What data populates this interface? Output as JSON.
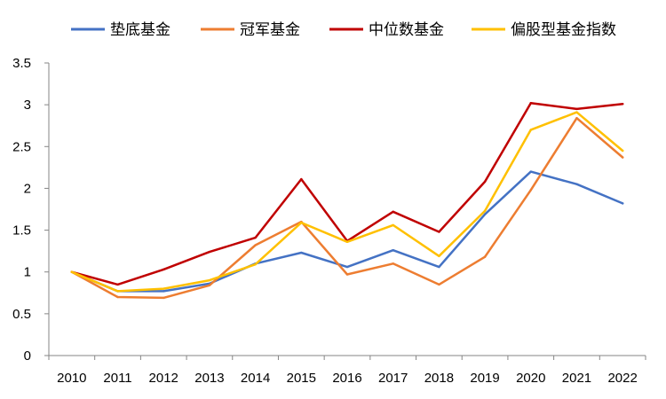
{
  "chart_data": {
    "type": "line",
    "title": "",
    "xlabel": "",
    "ylabel": "",
    "categories": [
      "2010",
      "2011",
      "2012",
      "2013",
      "2014",
      "2015",
      "2016",
      "2017",
      "2018",
      "2019",
      "2020",
      "2021",
      "2022"
    ],
    "ylim": [
      0,
      3.5
    ],
    "yticks": [
      "0",
      "0.5",
      "1",
      "1.5",
      "2",
      "2.5",
      "3",
      "3.5"
    ],
    "grid": false,
    "legend_position": "top",
    "series": [
      {
        "name": "垫底基金",
        "color": "#4472C4",
        "values": [
          1.0,
          0.77,
          0.77,
          0.86,
          1.1,
          1.23,
          1.06,
          1.26,
          1.06,
          1.69,
          2.2,
          2.05,
          1.82
        ]
      },
      {
        "name": "冠军基金",
        "color": "#ED7D31",
        "values": [
          1.0,
          0.7,
          0.69,
          0.84,
          1.32,
          1.6,
          0.97,
          1.1,
          0.85,
          1.18,
          1.98,
          2.84,
          2.37
        ]
      },
      {
        "name": "中位数基金",
        "color": "#C00000",
        "values": [
          1.0,
          0.85,
          1.03,
          1.24,
          1.41,
          2.11,
          1.37,
          1.72,
          1.48,
          2.08,
          3.02,
          2.95,
          3.01
        ]
      },
      {
        "name": "偏股型基金指数",
        "color": "#FFC000",
        "values": [
          1.0,
          0.77,
          0.8,
          0.9,
          1.09,
          1.59,
          1.36,
          1.56,
          1.19,
          1.73,
          2.7,
          2.91,
          2.45
        ]
      }
    ]
  }
}
